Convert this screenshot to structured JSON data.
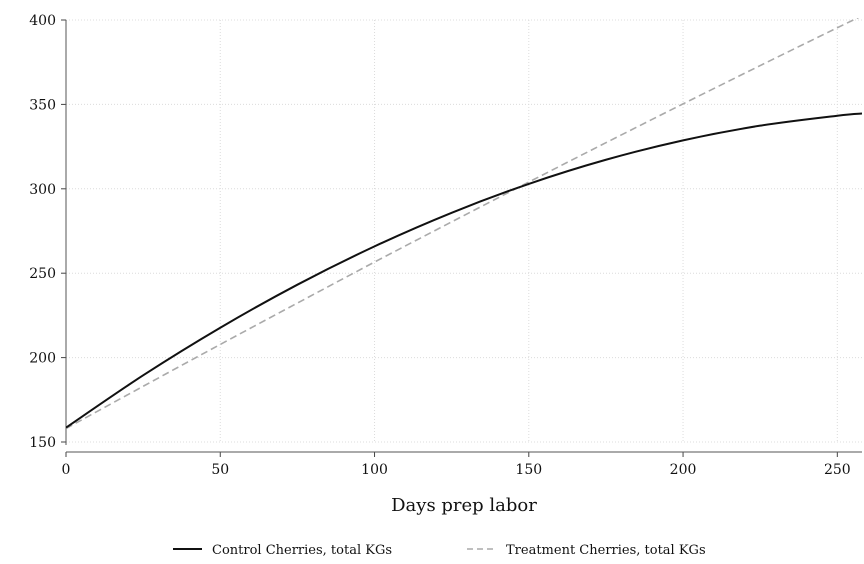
{
  "chart_data": {
    "type": "line",
    "title": "",
    "xlabel": "Days prep labor",
    "ylabel": "",
    "xlim": [
      0,
      258
    ],
    "ylim": [
      150,
      400
    ],
    "x_ticks": [
      0,
      50,
      100,
      150,
      200,
      250
    ],
    "y_ticks": [
      150,
      200,
      250,
      300,
      350,
      400
    ],
    "x_tick_labels": [
      "0",
      "50",
      "100",
      "150",
      "200",
      "250"
    ],
    "y_tick_labels": [
      "150",
      "200",
      "250",
      "300",
      "350",
      "400"
    ],
    "grid": true,
    "legend_position": "bottom",
    "series": [
      {
        "name": "Control Cherries, total KGs",
        "style": "solid",
        "color": "#111111",
        "x": [
          0,
          25,
          50,
          75,
          100,
          125,
          150,
          175,
          200,
          225,
          250,
          258
        ],
        "y": [
          158.5,
          189.5,
          217.7,
          243.2,
          265.9,
          285.8,
          302.9,
          317.2,
          328.7,
          337.4,
          343.3,
          344.6
        ]
      },
      {
        "name": "Treatment Cherries, total KGs",
        "style": "dashed",
        "color": "#aaaaaa",
        "x": [
          0,
          25,
          50,
          75,
          100,
          125,
          150,
          175,
          200,
          225,
          250,
          258
        ],
        "y": [
          158.0,
          183.0,
          207.8,
          232.3,
          256.6,
          280.4,
          304.0,
          327.3,
          350.3,
          373.0,
          395.4,
          402.5
        ]
      }
    ]
  }
}
